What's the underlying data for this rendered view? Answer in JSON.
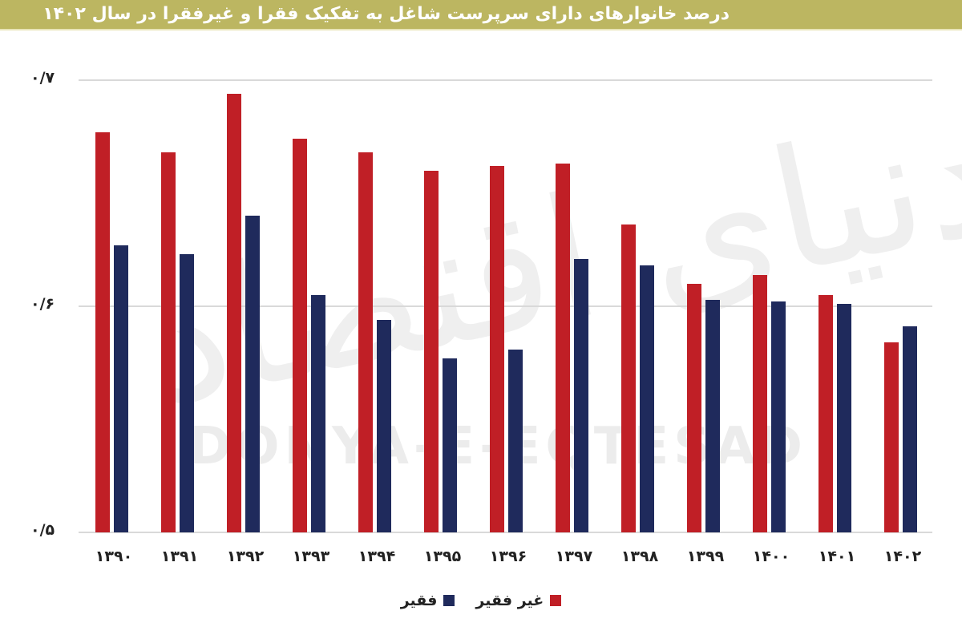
{
  "header": {
    "title": "درصد خانوارهای دارای سرپرست شاغل به تفکیک فقرا و غیرفقرا در سال ۱۴۰۲",
    "background_color": "#bcb661"
  },
  "watermark": {
    "latin": "DONYA-E-EQTESAD",
    "persian": "دنیای اقتصاد"
  },
  "axis": {
    "y_ticks": [
      {
        "label": "۰/۷",
        "value": 0.7
      },
      {
        "label": "۰/۶",
        "value": 0.6
      },
      {
        "label": "۰/۵",
        "value": 0.5
      }
    ]
  },
  "legend": {
    "items": [
      {
        "label": "غیر فقیر",
        "color": "#c01f26"
      },
      {
        "label": "فقیر",
        "color": "#1f2a5c"
      }
    ]
  },
  "chart_data": {
    "type": "bar",
    "title": "درصد خانوارهای دارای سرپرست شاغل به تفکیک فقرا و غیرفقرا در سال ۱۴۰۲",
    "xlabel": "",
    "ylabel": "",
    "ylim": [
      0.5,
      0.7
    ],
    "grid": true,
    "legend_position": "bottom",
    "categories": [
      "۱۳۹۰",
      "۱۳۹۱",
      "۱۳۹۲",
      "۱۳۹۳",
      "۱۳۹۴",
      "۱۳۹۵",
      "۱۳۹۶",
      "۱۳۹۷",
      "۱۳۹۸",
      "۱۳۹۹",
      "۱۴۰۰",
      "۱۴۰۱",
      "۱۴۰۲"
    ],
    "y_tick_labels": [
      "۰/۵",
      "۰/۶",
      "۰/۷"
    ],
    "series": [
      {
        "name": "غیر فقیر",
        "color": "#c01f26",
        "values": [
          0.677,
          0.668,
          0.694,
          0.674,
          0.668,
          0.66,
          0.662,
          0.663,
          0.636,
          0.61,
          0.614,
          0.605,
          0.584
        ]
      },
      {
        "name": "فقیر",
        "color": "#1f2a5c",
        "values": [
          0.627,
          0.623,
          0.64,
          0.605,
          0.594,
          0.577,
          0.581,
          0.621,
          0.618,
          0.603,
          0.602,
          0.601,
          0.591
        ]
      }
    ]
  }
}
